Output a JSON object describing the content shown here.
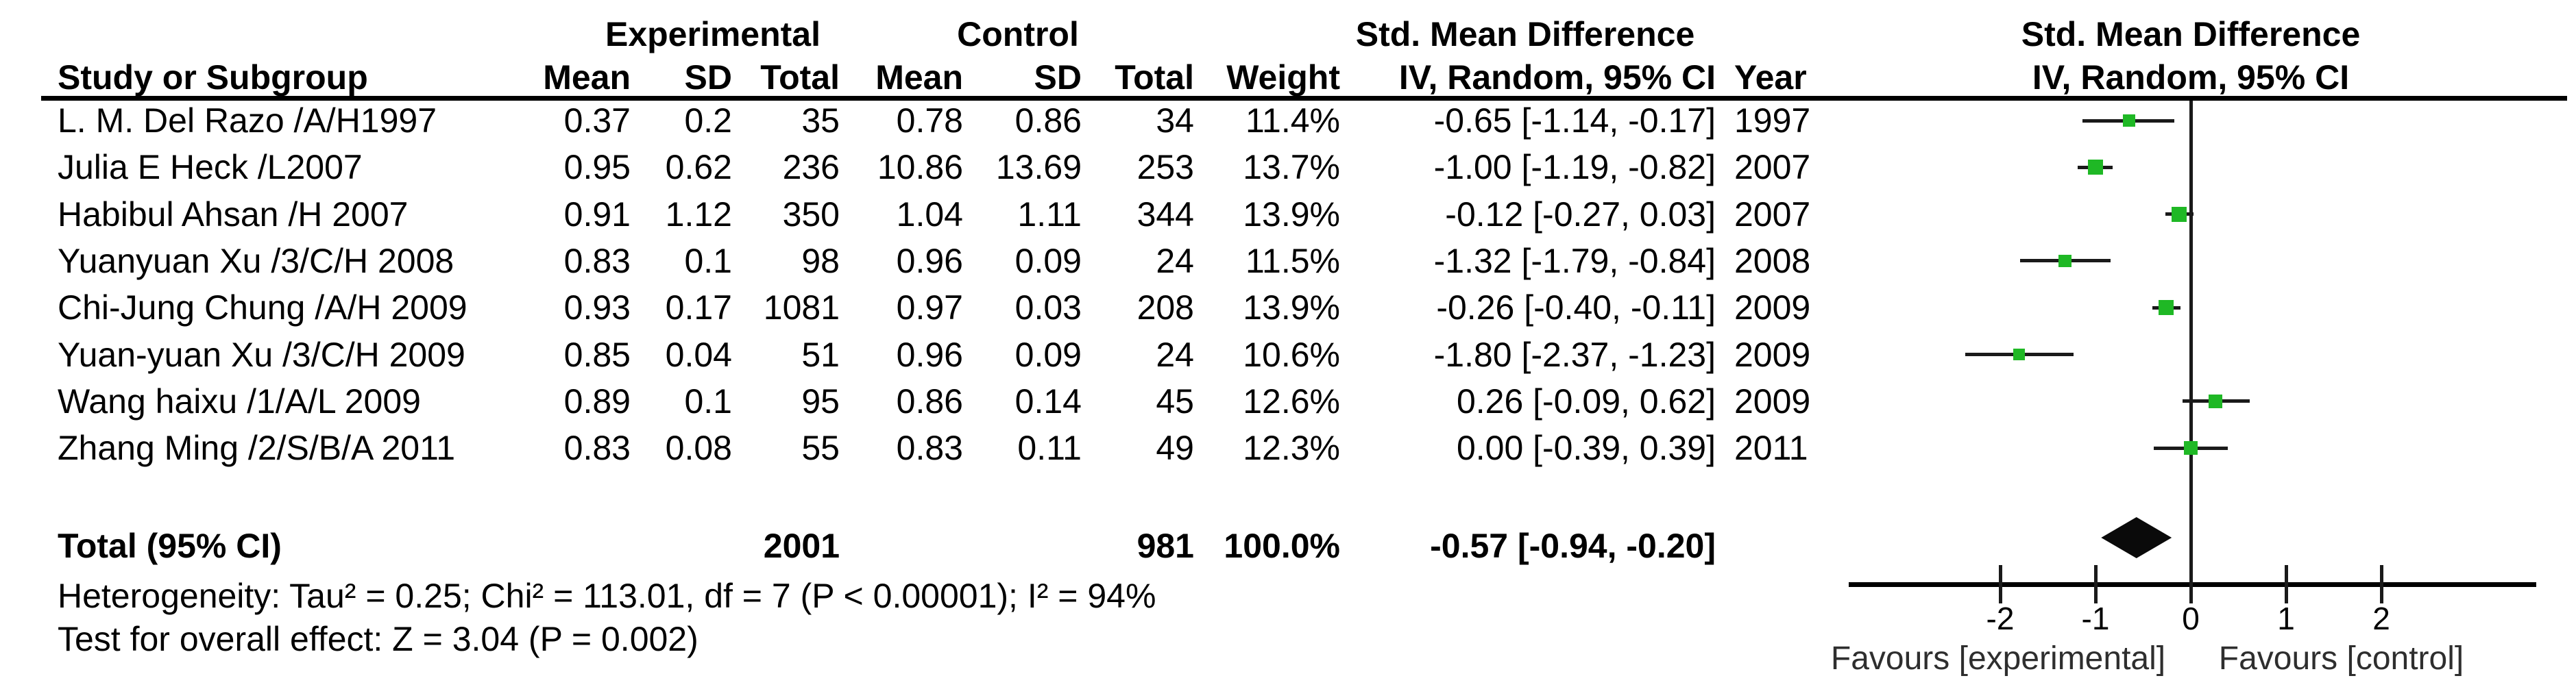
{
  "chart_data": {
    "type": "forest",
    "effect_measure": "Std. Mean Difference",
    "method": "IV, Random, 95% CI",
    "group_headers": {
      "experimental": "Experimental",
      "control": "Control",
      "smd_table": "Std. Mean Difference",
      "smd_plot": "Std. Mean Difference"
    },
    "column_headers": {
      "study": "Study or Subgroup",
      "exp_mean": "Mean",
      "exp_sd": "SD",
      "exp_total": "Total",
      "ctrl_mean": "Mean",
      "ctrl_sd": "SD",
      "ctrl_total": "Total",
      "weight": "Weight",
      "iv_table": "IV, Random, 95% CI",
      "year": "Year",
      "iv_plot": "IV, Random, 95% CI"
    },
    "studies": [
      {
        "name": "L. M. Del Razo /A/H1997",
        "exp_mean": "0.37",
        "exp_sd": "0.2",
        "exp_total": "35",
        "ctrl_mean": "0.78",
        "ctrl_sd": "0.86",
        "ctrl_total": "34",
        "weight_text": "11.4%",
        "weight_value": 11.4,
        "ci_text": "-0.65 [-1.14, -0.17]",
        "year": "1997",
        "smd": -0.65,
        "ci_low": -1.14,
        "ci_high": -0.17
      },
      {
        "name": "Julia E Heck /L2007",
        "exp_mean": "0.95",
        "exp_sd": "0.62",
        "exp_total": "236",
        "ctrl_mean": "10.86",
        "ctrl_sd": "13.69",
        "ctrl_total": "253",
        "weight_text": "13.7%",
        "weight_value": 13.7,
        "ci_text": "-1.00 [-1.19, -0.82]",
        "year": "2007",
        "smd": -1.0,
        "ci_low": -1.19,
        "ci_high": -0.82
      },
      {
        "name": "Habibul Ahsan /H 2007",
        "exp_mean": "0.91",
        "exp_sd": "1.12",
        "exp_total": "350",
        "ctrl_mean": "1.04",
        "ctrl_sd": "1.11",
        "ctrl_total": "344",
        "weight_text": "13.9%",
        "weight_value": 13.9,
        "ci_text": "-0.12 [-0.27, 0.03]",
        "year": "2007",
        "smd": -0.12,
        "ci_low": -0.27,
        "ci_high": 0.03
      },
      {
        "name": "Yuanyuan Xu /3/C/H 2008",
        "exp_mean": "0.83",
        "exp_sd": "0.1",
        "exp_total": "98",
        "ctrl_mean": "0.96",
        "ctrl_sd": "0.09",
        "ctrl_total": "24",
        "weight_text": "11.5%",
        "weight_value": 11.5,
        "ci_text": "-1.32 [-1.79, -0.84]",
        "year": "2008",
        "smd": -1.32,
        "ci_low": -1.79,
        "ci_high": -0.84
      },
      {
        "name": "Chi-Jung Chung /A/H 2009",
        "exp_mean": "0.93",
        "exp_sd": "0.17",
        "exp_total": "1081",
        "ctrl_mean": "0.97",
        "ctrl_sd": "0.03",
        "ctrl_total": "208",
        "weight_text": "13.9%",
        "weight_value": 13.9,
        "ci_text": "-0.26 [-0.40, -0.11]",
        "year": "2009",
        "smd": -0.26,
        "ci_low": -0.4,
        "ci_high": -0.11
      },
      {
        "name": "Yuan-yuan Xu /3/C/H 2009",
        "exp_mean": "0.85",
        "exp_sd": "0.04",
        "exp_total": "51",
        "ctrl_mean": "0.96",
        "ctrl_sd": "0.09",
        "ctrl_total": "24",
        "weight_text": "10.6%",
        "weight_value": 10.6,
        "ci_text": "-1.80 [-2.37, -1.23]",
        "year": "2009",
        "smd": -1.8,
        "ci_low": -2.37,
        "ci_high": -1.23
      },
      {
        "name": "Wang haixu /1/A/L 2009",
        "exp_mean": "0.89",
        "exp_sd": "0.1",
        "exp_total": "95",
        "ctrl_mean": "0.86",
        "ctrl_sd": "0.14",
        "ctrl_total": "45",
        "weight_text": "12.6%",
        "weight_value": 12.6,
        "ci_text": "0.26 [-0.09, 0.62]",
        "year": "2009",
        "smd": 0.26,
        "ci_low": -0.09,
        "ci_high": 0.62
      },
      {
        "name": "Zhang Ming /2/S/B/A 2011",
        "exp_mean": "0.83",
        "exp_sd": "0.08",
        "exp_total": "55",
        "ctrl_mean": "0.83",
        "ctrl_sd": "0.11",
        "ctrl_total": "49",
        "weight_text": "12.3%",
        "weight_value": 12.3,
        "ci_text": "0.00 [-0.39, 0.39]",
        "year": "2011",
        "smd": 0.0,
        "ci_low": -0.39,
        "ci_high": 0.39
      }
    ],
    "total_row": {
      "label": "Total (95% CI)",
      "exp_total": "2001",
      "ctrl_total": "981",
      "weight_text": "100.0%",
      "ci_text": "-0.57 [-0.94, -0.20]",
      "smd": -0.57,
      "ci_low": -0.94,
      "ci_high": -0.2
    },
    "heterogeneity_text": "Heterogeneity: Tau² = 0.25; Chi² = 113.01, df = 7 (P < 0.00001); I² = 94%",
    "overall_effect_text": "Test for overall effect: Z = 3.04 (P = 0.002)",
    "axis": {
      "ticks": [
        -2,
        -1,
        0,
        1,
        2
      ],
      "tick_labels": [
        "-2",
        "-1",
        "0",
        "1",
        "2"
      ],
      "xlim": [
        -3.6,
        3.6
      ]
    },
    "favours_left": "Favours [experimental]",
    "favours_right": "Favours [control]",
    "marker_color": "#1FB825",
    "line_color": "#1a1a1a"
  }
}
